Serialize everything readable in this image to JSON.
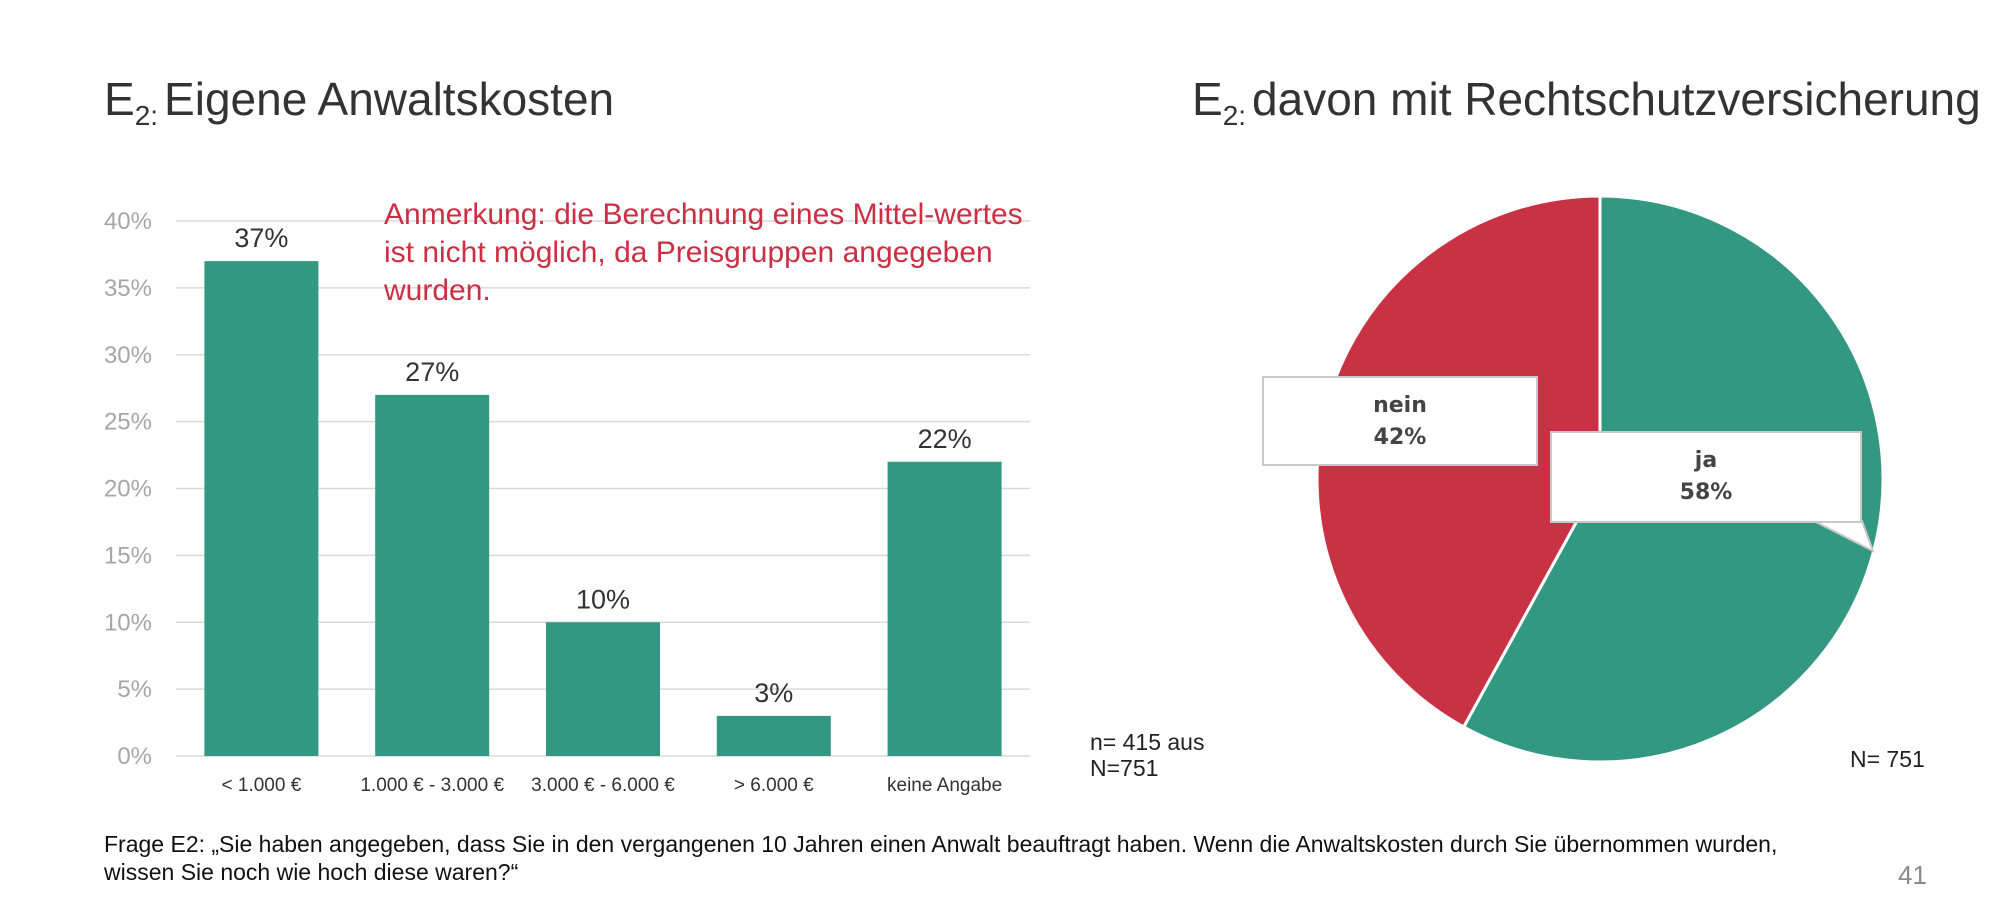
{
  "left_title": {
    "prefix": "E",
    "sub": "2:",
    "text": "Eigene Anwaltskosten"
  },
  "right_title": {
    "prefix": "E",
    "sub": "2:",
    "text": "davon mit Rechtschutzversicherung"
  },
  "annotation": "Anmerkung: die Berechnung eines Mittel-wertes ist nicht möglich, da Preisgruppen angegeben wurden.",
  "left_n": "n= 415 aus N=751",
  "right_n": "N= 751",
  "question": "Frage E2: „Sie haben angegeben, dass Sie in den vergangenen 10 Jahren einen Anwalt beauftragt haben. Wenn die Anwaltskosten durch Sie übernommen wurden, wissen Sie noch wie hoch diese waren?“",
  "page_number": "41",
  "colors": {
    "bar": "#339882",
    "ja": "#339882",
    "nein": "#c93144",
    "grid": "#d9d9d9",
    "tick": "#a6a6a6"
  },
  "chart_data": [
    {
      "type": "bar",
      "categories": [
        "< 1.000 €",
        "1.000 € - 3.000 €",
        "3.000 € - 6.000 €",
        "> 6.000 €",
        "keine Angabe"
      ],
      "values": [
        37,
        27,
        10,
        3,
        22
      ],
      "value_labels": [
        "37%",
        "27%",
        "10%",
        "3%",
        "22%"
      ],
      "y_ticks": [
        "0%",
        "5%",
        "10%",
        "15%",
        "20%",
        "25%",
        "30%",
        "35%",
        "40%"
      ],
      "ylim": [
        0,
        40
      ],
      "grid": true
    },
    {
      "type": "pie",
      "slices": [
        {
          "label": "ja",
          "value": 58,
          "value_label": "58%"
        },
        {
          "label": "nein",
          "value": 42,
          "value_label": "42%"
        }
      ]
    }
  ]
}
